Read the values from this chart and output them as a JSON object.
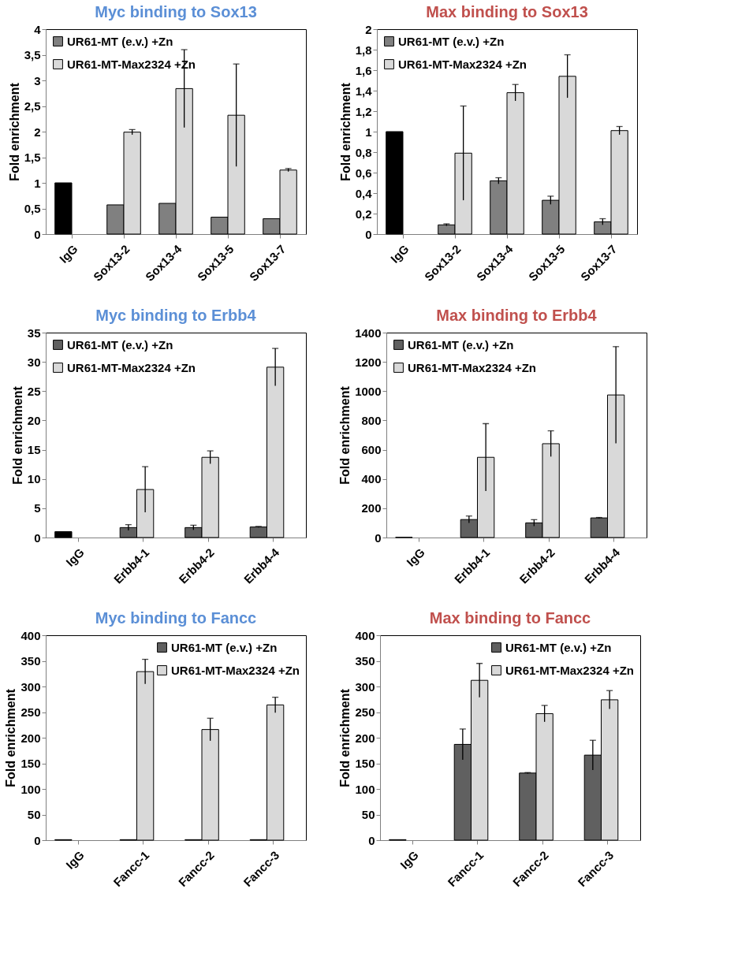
{
  "chart_data": [
    {
      "type": "bar",
      "title": "Myc binding to Sox13",
      "ylabel": "Fold enrichment",
      "categories": [
        "IgG",
        "Sox13-2",
        "Sox13-4",
        "Sox13-5",
        "Sox13-7"
      ],
      "ylim": [
        0,
        4
      ],
      "yticks": [
        0,
        {
          "value": 0.5,
          "label": "0,5"
        },
        1,
        {
          "value": 1.5,
          "label": "1,5"
        },
        2,
        {
          "value": 2.5,
          "label": "2,5"
        },
        3,
        {
          "value": 3.5,
          "label": "3,5"
        },
        4
      ],
      "grid": false,
      "legend": "top left",
      "series": [
        {
          "name": "UR61-MT (e.v.) +Zn",
          "color": "#808080",
          "colors": [
            "#000000",
            "#808080",
            "#808080",
            "#808080",
            "#808080"
          ],
          "values": [
            1.0,
            0.57,
            0.6,
            0.33,
            0.3
          ]
        },
        {
          "name": "UR61-MT-Max2324 +Zn",
          "color": "#d9d9d9",
          "values": [
            null,
            1.99,
            2.84,
            2.32,
            1.25
          ],
          "errors": [
            null,
            0.05,
            0.76,
            1.0,
            0.03
          ]
        }
      ]
    },
    {
      "type": "bar",
      "title": "Max binding to Sox13",
      "ylabel": "Fold enrichment",
      "categories": [
        "IgG",
        "Sox13-2",
        "Sox13-4",
        "Sox13-5",
        "Sox13-7"
      ],
      "ylim": [
        0,
        2
      ],
      "yticks": [
        0,
        {
          "value": 0.2,
          "label": "0,2"
        },
        {
          "value": 0.4,
          "label": "0,4"
        },
        {
          "value": 0.6,
          "label": "0,6"
        },
        {
          "value": 0.8,
          "label": "0,8"
        },
        1,
        {
          "value": 1.2,
          "label": "1,2"
        },
        {
          "value": 1.4,
          "label": "1,4"
        },
        {
          "value": 1.6,
          "label": "1,6"
        },
        {
          "value": 1.8,
          "label": "1,8"
        },
        2
      ],
      "grid": false,
      "legend": "top left",
      "series": [
        {
          "name": "UR61-MT (e.v.) +Zn",
          "color": "#808080",
          "colors": [
            "#000000",
            "#808080",
            "#808080",
            "#808080",
            "#808080"
          ],
          "values": [
            1.0,
            0.09,
            0.52,
            0.33,
            0.12
          ],
          "errors": [
            null,
            0.01,
            0.03,
            0.04,
            0.03
          ]
        },
        {
          "name": "UR61-MT-Max2324 +Zn",
          "color": "#d9d9d9",
          "values": [
            null,
            0.79,
            1.38,
            1.54,
            1.01
          ],
          "errors": [
            null,
            0.46,
            0.08,
            0.21,
            0.04
          ]
        }
      ]
    },
    {
      "type": "bar",
      "title": "Myc binding to Erbb4",
      "ylabel": "Fold enrichment",
      "categories": [
        "IgG",
        "Erbb4-1",
        "Erbb4-2",
        "Erbb4-4"
      ],
      "ylim": [
        0,
        35
      ],
      "yticks": [
        0,
        5,
        10,
        15,
        20,
        25,
        30,
        35
      ],
      "grid": false,
      "legend": "top left",
      "series": [
        {
          "name": "UR61-MT (e.v.) +Zn",
          "color": "#606060",
          "colors": [
            "#000000",
            "#606060",
            "#606060",
            "#606060"
          ],
          "values": [
            1.0,
            1.7,
            1.7,
            1.8
          ],
          "errors": [
            null,
            0.5,
            0.4,
            0.1
          ]
        },
        {
          "name": "UR61-MT-Max2324 +Zn",
          "color": "#d9d9d9",
          "values": [
            null,
            8.2,
            13.7,
            29.1
          ],
          "errors": [
            null,
            3.9,
            1.1,
            3.2
          ]
        }
      ]
    },
    {
      "type": "bar",
      "title": "Max binding to Erbb4",
      "ylabel": "Fold enrichment",
      "categories": [
        "IgG",
        "Erbb4-1",
        "Erbb4-2",
        "Erbb4-4"
      ],
      "ylim": [
        0,
        1400
      ],
      "yticks": [
        0,
        200,
        400,
        600,
        800,
        1000,
        1200,
        1400
      ],
      "grid": false,
      "legend": "top left",
      "series": [
        {
          "name": "UR61-MT (e.v.) +Zn",
          "color": "#606060",
          "colors": [
            "#000000",
            "#606060",
            "#606060",
            "#606060"
          ],
          "values": [
            1,
            123,
            100,
            134
          ],
          "errors": [
            null,
            24,
            22,
            3
          ]
        },
        {
          "name": "UR61-MT-Max2324 +Zn",
          "color": "#d9d9d9",
          "values": [
            null,
            548,
            641,
            974
          ],
          "errors": [
            null,
            230,
            88,
            330
          ]
        }
      ]
    },
    {
      "type": "bar",
      "title": "Myc binding to Fancc",
      "ylabel": "Fold enrichment",
      "categories": [
        "IgG",
        "Fancc-1",
        "Fancc-2",
        "Fancc-3"
      ],
      "ylim": [
        0,
        400
      ],
      "yticks": [
        0,
        50,
        100,
        150,
        200,
        250,
        300,
        350,
        400
      ],
      "grid": false,
      "legend": "top right",
      "series": [
        {
          "name": "UR61-MT (e.v.) +Zn",
          "color": "#606060",
          "colors": [
            "#000000",
            "#606060",
            "#606060",
            "#606060"
          ],
          "values": [
            1,
            1,
            1,
            1
          ]
        },
        {
          "name": "UR61-MT-Max2324 +Zn",
          "color": "#d9d9d9",
          "values": [
            null,
            329,
            216,
            264
          ],
          "errors": [
            null,
            24,
            22,
            15
          ]
        }
      ]
    },
    {
      "type": "bar",
      "title": "Max binding to Fancc",
      "ylabel": "Fold enrichment",
      "categories": [
        "IgG",
        "Fancc-1",
        "Fancc-2",
        "Fancc-3"
      ],
      "ylim": [
        0,
        400
      ],
      "yticks": [
        0,
        50,
        100,
        150,
        200,
        250,
        300,
        350,
        400
      ],
      "grid": false,
      "legend": "top right",
      "series": [
        {
          "name": "UR61-MT (e.v.) +Zn",
          "color": "#606060",
          "colors": [
            "#000000",
            "#606060",
            "#606060",
            "#606060"
          ],
          "values": [
            1,
            187,
            131,
            166
          ],
          "errors": [
            null,
            30,
            1,
            29
          ]
        },
        {
          "name": "UR61-MT-Max2324 +Zn",
          "color": "#d9d9d9",
          "values": [
            null,
            312,
            247,
            274
          ],
          "errors": [
            null,
            33,
            16,
            18
          ]
        }
      ]
    }
  ]
}
